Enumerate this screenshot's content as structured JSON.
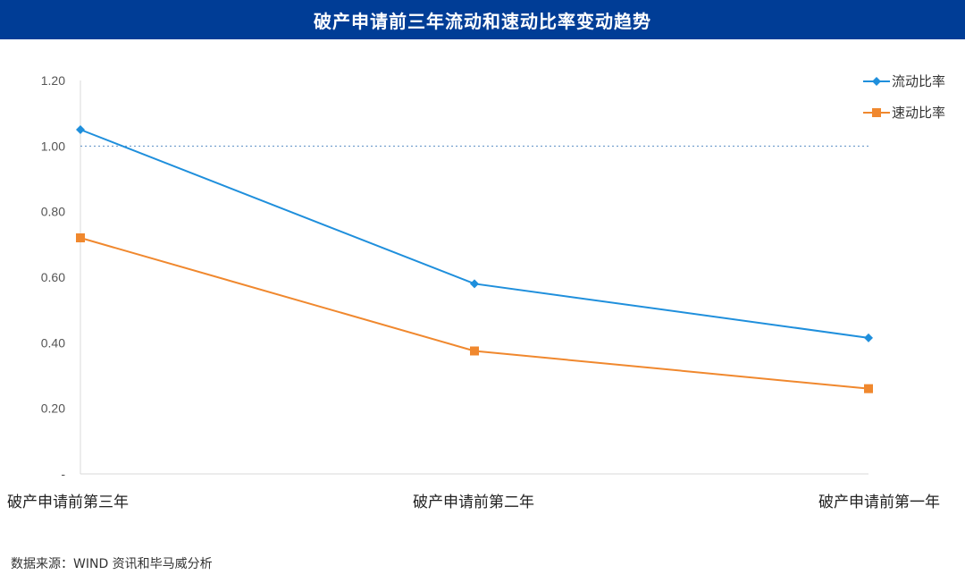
{
  "title": "破产申请前三年流动和速动比率变动趋势",
  "source": "数据来源：WIND 资讯和毕马威分析",
  "colors": {
    "title_bg": "#003d96",
    "current_ratio": "#1f8fdc",
    "quick_ratio": "#f0882e",
    "reference_line": "#5b8fc4"
  },
  "chart_data": {
    "type": "line",
    "categories": [
      "破产申请前第三年",
      "破产申请前第二年",
      "破产申请前第一年"
    ],
    "series": [
      {
        "name": "流动比率",
        "values": [
          1.05,
          0.58,
          0.415
        ],
        "marker": "diamond"
      },
      {
        "name": "速动比率",
        "values": [
          0.72,
          0.375,
          0.26
        ],
        "marker": "square"
      }
    ],
    "ylim": [
      0,
      1.2
    ],
    "yticks": [
      "-",
      "0.20",
      "0.40",
      "0.60",
      "0.80",
      "1.00",
      "1.20"
    ],
    "reference_line": 1.0,
    "legend": "top-right",
    "grid": false
  }
}
